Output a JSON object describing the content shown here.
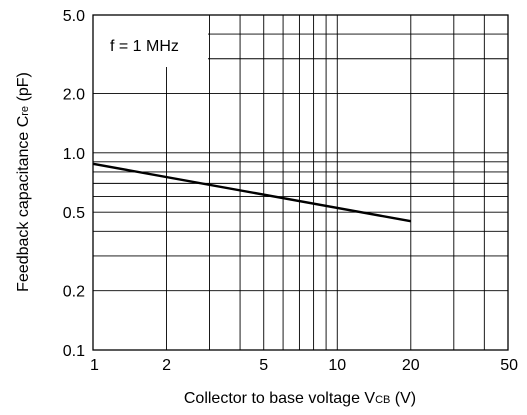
{
  "chart_data": {
    "type": "line",
    "x_scale": "log",
    "y_scale": "log",
    "xlim": [
      1,
      50
    ],
    "ylim": [
      0.1,
      5.0
    ],
    "grid": true,
    "x_tick_labels": [
      "1",
      "2",
      "5",
      "10",
      "20",
      "50"
    ],
    "x_tick_values": [
      1,
      2,
      5,
      10,
      20,
      50
    ],
    "y_tick_labels": [
      "0.1",
      "0.2",
      "0.5",
      "1.0",
      "2.0",
      "5.0"
    ],
    "y_tick_values": [
      0.1,
      0.2,
      0.5,
      1.0,
      2.0,
      5.0
    ],
    "xlabel": {
      "text": "Collector to base voltage V",
      "sub": "CB",
      "unit": " (V)"
    },
    "ylabel": {
      "text": "Feedback capacitance C",
      "sub": "re",
      "unit": " (pF)"
    },
    "annotation": "f = 1 MHz",
    "series": [
      {
        "x": [
          1,
          20
        ],
        "y": [
          0.88,
          0.45
        ]
      }
    ]
  }
}
